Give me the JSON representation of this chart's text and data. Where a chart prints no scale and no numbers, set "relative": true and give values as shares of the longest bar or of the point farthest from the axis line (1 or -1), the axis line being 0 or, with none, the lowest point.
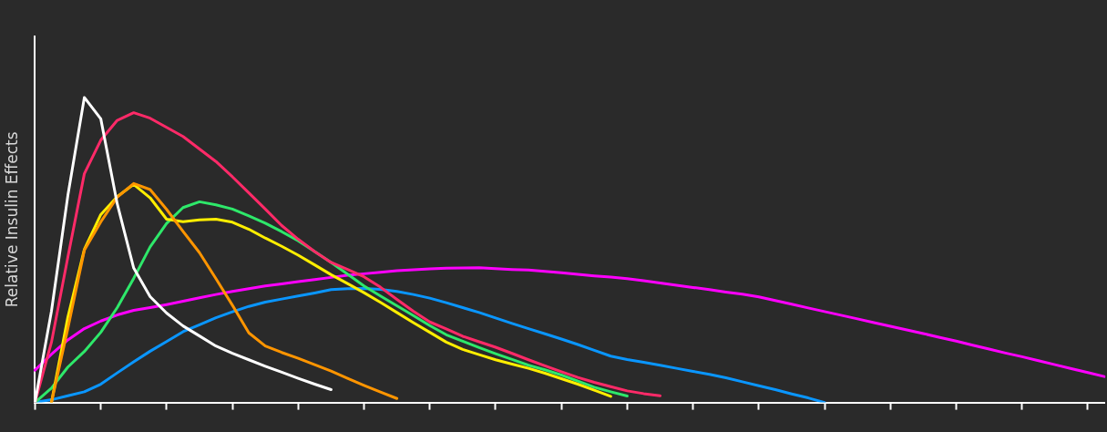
{
  "chart_data": {
    "type": "line",
    "ylabel": "Relative Insulin Effects",
    "relative": true,
    "legend": false,
    "grid": false,
    "marker": "none",
    "line_style": "solid",
    "categories": [
      null,
      null,
      null,
      null,
      null,
      null,
      null,
      null,
      null,
      null,
      null,
      null,
      null,
      null,
      null,
      null,
      null,
      null,
      null,
      null,
      null,
      null,
      null,
      null,
      null,
      null,
      null,
      null,
      null,
      null,
      null,
      null,
      null,
      null,
      null,
      null,
      null,
      null,
      null,
      null,
      null,
      null,
      null,
      null,
      null,
      null,
      null,
      null,
      null,
      null,
      null,
      null,
      null,
      null,
      null,
      null,
      null,
      null,
      null,
      null,
      null,
      null,
      null,
      null,
      null,
      null
    ],
    "series": [
      {
        "color": "#ffffff",
        "values": [
          0,
          0.299,
          0.679,
          1,
          0.93,
          0.651,
          0.441,
          0.347,
          0.293,
          0.251,
          0.218,
          0.185,
          0.161,
          0.14,
          0.119,
          0.099,
          0.079,
          0.06,
          0.042,
          null,
          null,
          null,
          null,
          null,
          null,
          null,
          null,
          null,
          null,
          null,
          null,
          null,
          null,
          null,
          null,
          null,
          null,
          null,
          null,
          null,
          null,
          null,
          null,
          null,
          null,
          null,
          null,
          null,
          null,
          null,
          null,
          null,
          null,
          null,
          null,
          null,
          null,
          null,
          null,
          null,
          null,
          null,
          null,
          null,
          null,
          null
        ]
      },
      {
        "color": "#ff2a68",
        "values": [
          0,
          0.197,
          0.477,
          0.75,
          0.86,
          0.925,
          0.95,
          0.932,
          0.902,
          0.872,
          0.831,
          0.79,
          0.74,
          0.687,
          0.634,
          0.58,
          0.535,
          0.495,
          0.459,
          0.436,
          0.412,
          0.378,
          0.338,
          0.299,
          0.264,
          0.241,
          0.217,
          0.199,
          0.181,
          0.161,
          0.14,
          0.12,
          0.101,
          0.082,
          0.066,
          0.052,
          0.038,
          0.029,
          0.022,
          null,
          null,
          null,
          null,
          null,
          null,
          null,
          null,
          null,
          null,
          null,
          null,
          null,
          null,
          null,
          null,
          null,
          null,
          null,
          null,
          null,
          null,
          null,
          null,
          null,
          null,
          null
        ]
      },
      {
        "color": "#ff9500",
        "values": [
          null,
          0,
          0.243,
          0.499,
          0.592,
          0.673,
          0.718,
          0.698,
          0.633,
          0.561,
          0.491,
          0.406,
          0.319,
          0.228,
          0.185,
          0.164,
          0.145,
          0.124,
          0.103,
          0.079,
          0.056,
          0.034,
          0.013,
          null,
          null,
          null,
          null,
          null,
          null,
          null,
          null,
          null,
          null,
          null,
          null,
          null,
          null,
          null,
          null,
          null,
          null,
          null,
          null,
          null,
          null,
          null,
          null,
          null,
          null,
          null,
          null,
          null,
          null,
          null,
          null,
          null,
          null,
          null,
          null,
          null,
          null,
          null,
          null,
          null,
          null,
          null
        ]
      },
      {
        "color": "#ffee00",
        "values": [
          null,
          0,
          0.28,
          0.502,
          0.616,
          0.675,
          0.715,
          0.671,
          0.601,
          0.593,
          0.599,
          0.601,
          0.591,
          0.568,
          0.539,
          0.512,
          0.483,
          0.451,
          0.419,
          0.39,
          0.36,
          0.328,
          0.295,
          0.262,
          0.23,
          0.198,
          0.174,
          0.157,
          0.14,
          0.126,
          0.112,
          0.096,
          0.078,
          0.06,
          0.04,
          0.02,
          null,
          null,
          null,
          null,
          null,
          null,
          null,
          null,
          null,
          null,
          null,
          null,
          null,
          null,
          null,
          null,
          null,
          null,
          null,
          null,
          null,
          null,
          null,
          null,
          null,
          null,
          null,
          null,
          null,
          null
        ]
      },
      {
        "color": "#2ee86a",
        "values": [
          0,
          0.047,
          0.116,
          0.167,
          0.23,
          0.311,
          0.407,
          0.51,
          0.587,
          0.639,
          0.658,
          0.648,
          0.634,
          0.612,
          0.588,
          0.56,
          0.53,
          0.495,
          0.459,
          0.421,
          0.382,
          0.349,
          0.317,
          0.285,
          0.252,
          0.222,
          0.201,
          0.18,
          0.16,
          0.141,
          0.122,
          0.107,
          0.09,
          0.07,
          0.05,
          0.035,
          0.021,
          null,
          null,
          null,
          null,
          null,
          null,
          null,
          null,
          null,
          null,
          null,
          null,
          null,
          null,
          null,
          null,
          null,
          null,
          null,
          null,
          null,
          null,
          null,
          null,
          null,
          null,
          null,
          null,
          null
        ]
      },
      {
        "color": "#ff00ff",
        "values": [
          0.106,
          0.158,
          0.205,
          0.242,
          0.267,
          0.287,
          0.302,
          0.311,
          0.321,
          0.332,
          0.343,
          0.354,
          0.364,
          0.373,
          0.382,
          0.389,
          0.396,
          0.403,
          0.41,
          0.417,
          0.422,
          0.427,
          0.432,
          0.435,
          0.438,
          0.44,
          0.441,
          0.442,
          0.439,
          0.436,
          0.434,
          0.43,
          0.425,
          0.42,
          0.415,
          0.411,
          0.406,
          0.399,
          0.392,
          0.384,
          0.377,
          0.37,
          0.362,
          0.355,
          0.346,
          0.334,
          0.322,
          0.31,
          0.298,
          0.286,
          0.274,
          0.262,
          0.25,
          0.238,
          0.226,
          0.213,
          0.201,
          0.188,
          0.175,
          0.162,
          0.15,
          0.137,
          0.124,
          0.111,
          0.098,
          0.085
        ]
      },
      {
        "color": "#0a96ff",
        "values": [
          0,
          0.009,
          0.022,
          0.035,
          0.06,
          0.097,
          0.133,
          0.168,
          0.2,
          0.232,
          0.255,
          0.278,
          0.297,
          0.315,
          0.329,
          0.339,
          0.349,
          0.359,
          0.37,
          0.373,
          0.374,
          0.371,
          0.364,
          0.354,
          0.342,
          0.327,
          0.311,
          0.295,
          0.277,
          0.259,
          0.242,
          0.225,
          0.208,
          0.19,
          0.171,
          0.152,
          0.141,
          0.132,
          0.122,
          0.112,
          0.102,
          0.092,
          0.081,
          0.068,
          0.055,
          0.042,
          0.028,
          0.015,
          0,
          null,
          null,
          null,
          null,
          null,
          null,
          null,
          null,
          null,
          null,
          null,
          null,
          null,
          null,
          null,
          null,
          null
        ]
      }
    ]
  }
}
